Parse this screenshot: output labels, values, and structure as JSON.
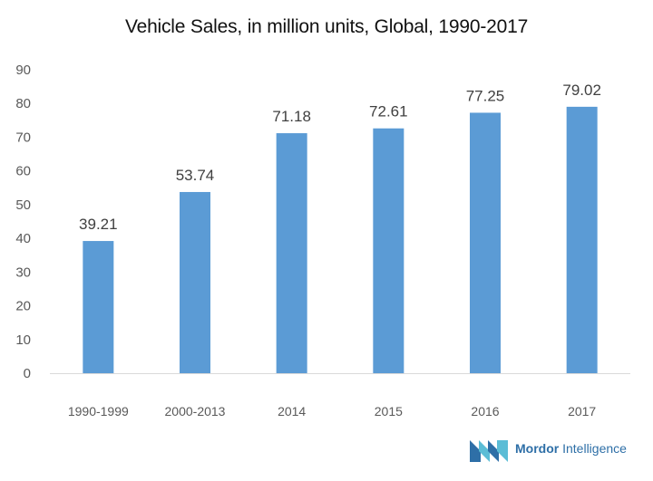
{
  "chart_data": {
    "type": "bar",
    "title": "Vehicle Sales, in million units, Global, 1990-2017",
    "categories": [
      "1990-1999",
      "2000-2013",
      "2014",
      "2015",
      "2016",
      "2017"
    ],
    "values": [
      39.21,
      53.74,
      71.18,
      72.61,
      77.25,
      79.02
    ],
    "value_labels": [
      "39.21",
      "53.74",
      "71.18",
      "72.61",
      "77.25",
      "79.02"
    ],
    "yticks": [
      "0",
      "10",
      "20",
      "30",
      "40",
      "50",
      "60",
      "70",
      "80",
      "90"
    ],
    "ylim": [
      0,
      90
    ],
    "xlabel": "",
    "ylabel": "",
    "grid": false,
    "bar_color": "#5b9bd5"
  },
  "brand": {
    "name_bold": "Mordor",
    "name_rest": " Intelligence",
    "logo_color": "#2e6fa7",
    "logo_accent": "#5bbdd6"
  }
}
